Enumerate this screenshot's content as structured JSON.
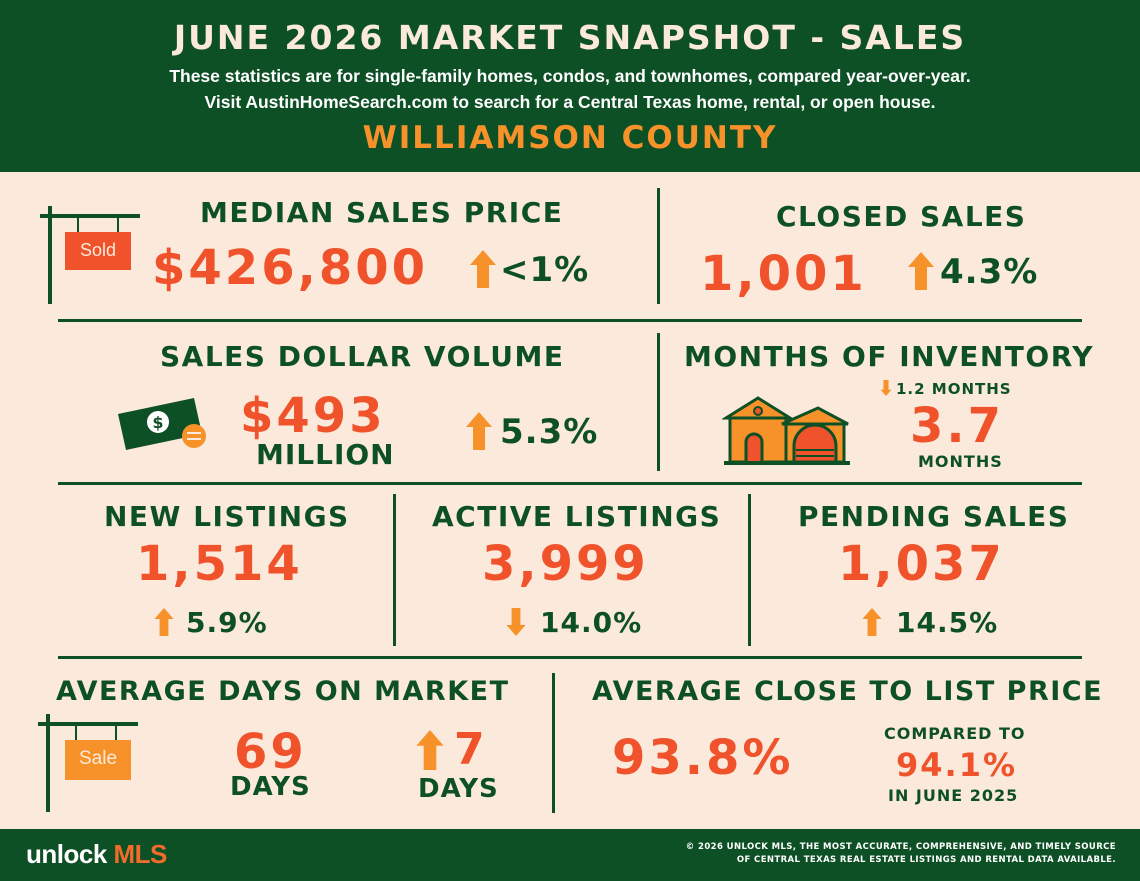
{
  "header": {
    "title": "JUNE 2026 MARKET SNAPSHOT - SALES",
    "subtitle1": "These statistics are for single-family homes, condos, and townhomes, compared year-over-year.",
    "subtitle2": "Visit AustinHomeSearch.com to search for a Central Texas home, rental, or open house.",
    "county": "WILLIAMSON COUNTY"
  },
  "median_sales_price": {
    "label": "MEDIAN SALES PRICE",
    "value": "$426,800",
    "change": "<1%",
    "direction": "up",
    "sign_text": "Sold"
  },
  "closed_sales": {
    "label": "CLOSED SALES",
    "value": "1,001",
    "change": "4.3%",
    "direction": "up"
  },
  "sales_dollar_volume": {
    "label": "SALES DOLLAR VOLUME",
    "value": "$493",
    "unit": "MILLION",
    "change": "5.3%",
    "direction": "up",
    "icon": "money-icon"
  },
  "months_of_inventory": {
    "label": "MONTHS OF INVENTORY",
    "change": "1.2  MONTHS",
    "direction": "down",
    "value": "3.7",
    "unit": "MONTHS",
    "icon": "house-icon"
  },
  "new_listings": {
    "label": "NEW LISTINGS",
    "value": "1,514",
    "change": "5.9%",
    "direction": "up"
  },
  "active_listings": {
    "label": "ACTIVE LISTINGS",
    "value": "3,999",
    "change": "14.0%",
    "direction": "down"
  },
  "pending_sales": {
    "label": "PENDING SALES",
    "value": "1,037",
    "change": "14.5%",
    "direction": "up"
  },
  "avg_days_on_market": {
    "label": "AVERAGE DAYS ON MARKET",
    "value": "69",
    "unit": "DAYS",
    "change": "7",
    "change_unit": "DAYS",
    "direction": "up",
    "sign_text": "Sale"
  },
  "avg_close_to_list": {
    "label": "AVERAGE CLOSE TO LIST PRICE",
    "value": "93.8%",
    "compare_label": "COMPARED TO",
    "compare_value": "94.1%",
    "compare_period": "IN JUNE 2025"
  },
  "footer": {
    "logo_prefix": "unlock ",
    "logo_suffix": "MLS",
    "copyright1": "© 2026 UNLOCK MLS, THE MOST ACCURATE, COMPREHENSIVE, AND TIMELY SOURCE",
    "copyright2": "OF CENTRAL TEXAS REAL ESTATE LISTINGS AND RENTAL DATA AVAILABLE."
  },
  "colors": {
    "green": "#0e5026",
    "orange": "#f7922a",
    "red_orange": "#f0532b",
    "cream": "#fbeadb"
  }
}
